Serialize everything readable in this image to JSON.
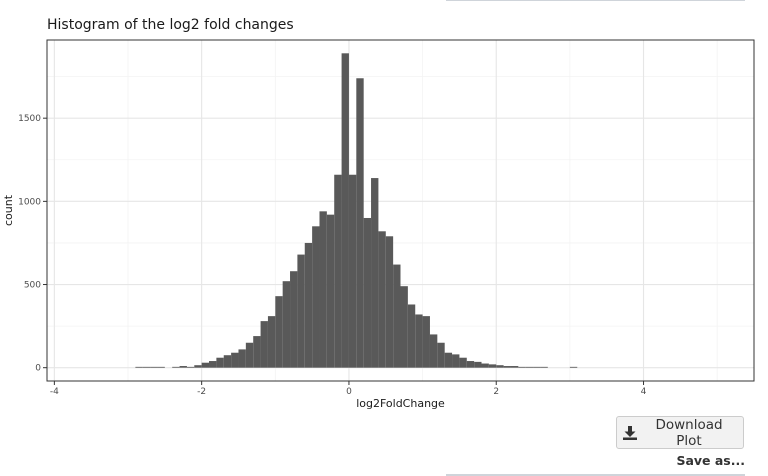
{
  "plot": {
    "title": "Histogram of the log2 fold changes"
  },
  "chart_data": {
    "type": "bar",
    "title": "Histogram of the log2 fold changes",
    "xlabel": "log2FoldChange",
    "ylabel": "count",
    "xlim": [
      -4.1,
      5.5
    ],
    "ylim": [
      -80,
      1970
    ],
    "xticks": [
      -4,
      -2,
      0,
      2,
      4
    ],
    "xtick_labels": [
      "-4",
      "-2",
      "0",
      "2",
      "4"
    ],
    "yticks": [
      0,
      500,
      1000,
      1500
    ],
    "ytick_labels": [
      "0",
      "500",
      "1000",
      "1500"
    ],
    "grid": true,
    "bin_width": 0.1,
    "bin_starts": [
      -2.9,
      -2.8,
      -2.7,
      -2.6,
      -2.5,
      -2.4,
      -2.3,
      -2.2,
      -2.1,
      -2.0,
      -1.9,
      -1.8,
      -1.7,
      -1.6,
      -1.5,
      -1.4,
      -1.3,
      -1.2,
      -1.1,
      -1.0,
      -0.9,
      -0.8,
      -0.7,
      -0.6,
      -0.5,
      -0.4,
      -0.3,
      -0.2,
      -0.1,
      0.0,
      0.1,
      0.2,
      0.3,
      0.4,
      0.5,
      0.6,
      0.7,
      0.8,
      0.9,
      1.0,
      1.1,
      1.2,
      1.3,
      1.4,
      1.5,
      1.6,
      1.7,
      1.8,
      1.9,
      2.0,
      2.1,
      2.2,
      2.3,
      2.4,
      2.5,
      2.6,
      2.7,
      2.8,
      2.9,
      3.0
    ],
    "values": [
      5,
      5,
      5,
      5,
      0,
      5,
      10,
      5,
      15,
      30,
      40,
      60,
      75,
      90,
      110,
      150,
      190,
      280,
      310,
      430,
      520,
      580,
      680,
      750,
      850,
      940,
      920,
      1160,
      1890,
      1160,
      1740,
      900,
      1140,
      820,
      790,
      620,
      490,
      380,
      320,
      310,
      200,
      150,
      90,
      80,
      60,
      40,
      35,
      25,
      20,
      15,
      10,
      10,
      5,
      5,
      5,
      5,
      0,
      0,
      0,
      5
    ]
  },
  "controls": {
    "download_icon": "download-icon",
    "download_label": "Download Plot",
    "save_label": "Save as..."
  }
}
